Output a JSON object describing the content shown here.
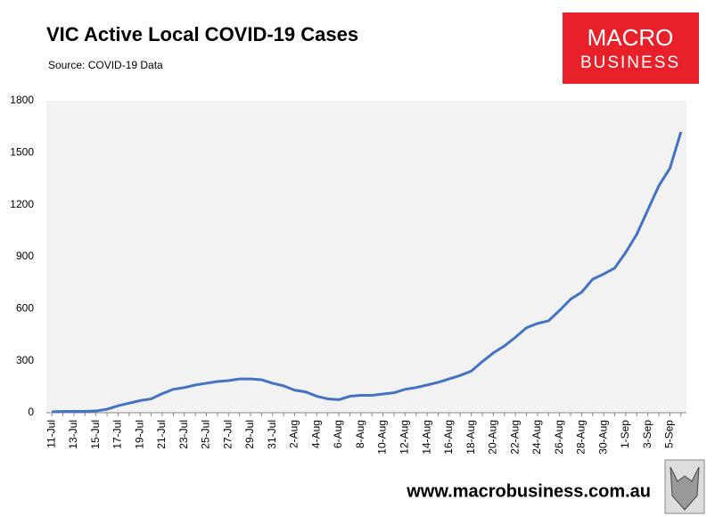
{
  "chart_data": {
    "type": "line",
    "title": "VIC Active Local COVID-19 Cases",
    "subtitle": "Source: COVID-19 Data",
    "categories": [
      "11-Jul",
      null,
      "13-Jul",
      null,
      "15-Jul",
      null,
      "17-Jul",
      null,
      "19-Jul",
      null,
      "21-Jul",
      null,
      "23-Jul",
      null,
      "25-Jul",
      null,
      "27-Jul",
      null,
      "29-Jul",
      null,
      "31-Jul",
      null,
      "2-Aug",
      null,
      "4-Aug",
      null,
      "6-Aug",
      null,
      "8-Aug",
      null,
      "10-Aug",
      null,
      "12-Aug",
      null,
      "14-Aug",
      null,
      "16-Aug",
      null,
      "18-Aug",
      null,
      "20-Aug",
      null,
      "22-Aug",
      null,
      "24-Aug",
      null,
      "26-Aug",
      null,
      "28-Aug",
      null,
      "30-Aug",
      null,
      "1-Sep",
      null,
      "3-Sep",
      null,
      "5-Sep",
      null
    ],
    "values": [
      5,
      8,
      8,
      8,
      10,
      20,
      40,
      55,
      70,
      80,
      110,
      135,
      145,
      160,
      170,
      180,
      185,
      195,
      195,
      190,
      170,
      155,
      130,
      120,
      95,
      80,
      75,
      95,
      100,
      100,
      108,
      115,
      135,
      145,
      160,
      175,
      195,
      215,
      240,
      295,
      345,
      385,
      435,
      490,
      515,
      530,
      590,
      655,
      695,
      770,
      800,
      835,
      925,
      1030,
      1170,
      1310,
      1410,
      1620
    ],
    "color": "#4472c4",
    "ylim": [
      0,
      1800
    ],
    "yticks": [
      0,
      300,
      600,
      900,
      1200,
      1500,
      1800
    ],
    "grid": false
  },
  "logo": {
    "line1": "MACRO",
    "line2": "BUSINESS"
  },
  "footer": "www.macrobusiness.com.au"
}
